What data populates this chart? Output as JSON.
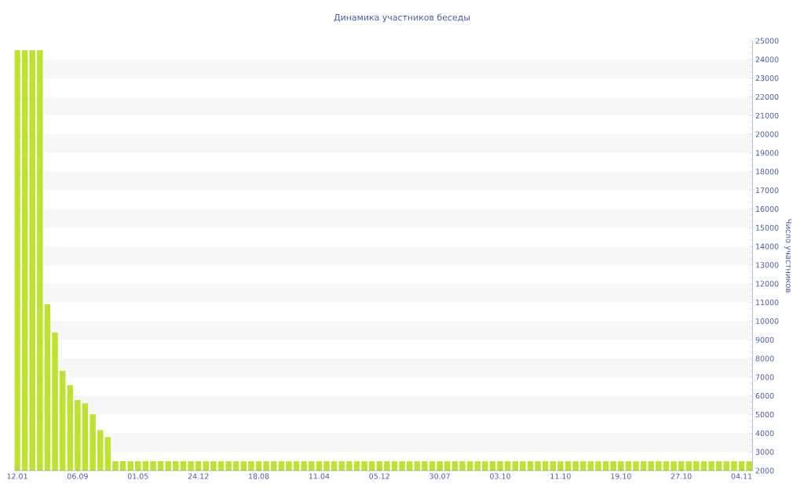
{
  "chart_data": {
    "type": "bar",
    "title": "Динамика участников беседы",
    "ylabel": "Число участников",
    "categories": [
      "12.01",
      null,
      null,
      null,
      null,
      null,
      null,
      null,
      "06.09",
      null,
      null,
      null,
      null,
      null,
      null,
      null,
      "01.05",
      null,
      null,
      null,
      null,
      null,
      null,
      null,
      "24.12",
      null,
      null,
      null,
      null,
      null,
      null,
      null,
      "18.08",
      null,
      null,
      null,
      null,
      null,
      null,
      null,
      "11.04",
      null,
      null,
      null,
      null,
      null,
      null,
      null,
      "05.12",
      null,
      null,
      null,
      null,
      null,
      null,
      null,
      "30.07",
      null,
      null,
      null,
      null,
      null,
      null,
      null,
      "03.10",
      null,
      null,
      null,
      null,
      null,
      null,
      null,
      "11.10",
      null,
      null,
      null,
      null,
      null,
      null,
      null,
      "19.10",
      null,
      null,
      null,
      null,
      null,
      null,
      null,
      "27.10",
      null,
      null,
      null,
      null,
      null,
      null,
      null,
      "04.11",
      null
    ],
    "values": [
      24500,
      24500,
      24500,
      24500,
      10900,
      9400,
      7340,
      6570,
      5780,
      5600,
      5010,
      4170,
      3790,
      2500,
      2500,
      2500,
      2500,
      2500,
      2500,
      2500,
      2500,
      2500,
      2500,
      2500,
      2500,
      2500,
      2500,
      2500,
      2500,
      2500,
      2500,
      2500,
      2500,
      2500,
      2500,
      2500,
      2500,
      2500,
      2500,
      2500,
      2500,
      2500,
      2500,
      2500,
      2500,
      2500,
      2500,
      2500,
      2500,
      2500,
      2500,
      2500,
      2500,
      2500,
      2500,
      2500,
      2500,
      2500,
      2500,
      2500,
      2500,
      2500,
      2500,
      2500,
      2500,
      2500,
      2500,
      2500,
      2500,
      2500,
      2500,
      2500,
      2500,
      2500,
      2500,
      2500,
      2500,
      2500,
      2500,
      2500,
      2500,
      2500,
      2500,
      2500,
      2500,
      2500,
      2500,
      2500,
      2500,
      2500,
      2500,
      2500,
      2500,
      2500,
      2500,
      2500,
      2500,
      2500
    ],
    "color": "#bde232",
    "ylim": [
      2000,
      25000
    ],
    "yticks": [
      2000,
      3000,
      4000,
      5000,
      6000,
      7000,
      8000,
      9000,
      10000,
      11000,
      12000,
      13000,
      14000,
      15000,
      16000,
      17000,
      18000,
      19000,
      20000,
      21000,
      22000,
      23000,
      24000,
      25000
    ],
    "bands": [
      {
        "axis": "y",
        "from": 3000,
        "to": 4000,
        "color": "#f7f7f7"
      },
      {
        "axis": "y",
        "from": 5000,
        "to": 6000,
        "color": "#f7f7f7"
      },
      {
        "axis": "y",
        "from": 7000,
        "to": 8000,
        "color": "#f7f7f7"
      },
      {
        "axis": "y",
        "from": 9000,
        "to": 10000,
        "color": "#f7f7f7"
      },
      {
        "axis": "y",
        "from": 11000,
        "to": 12000,
        "color": "#f7f7f7"
      },
      {
        "axis": "y",
        "from": 13000,
        "to": 14000,
        "color": "#f7f7f7"
      },
      {
        "axis": "y",
        "from": 15000,
        "to": 16000,
        "color": "#f7f7f7"
      },
      {
        "axis": "y",
        "from": 17000,
        "to": 18000,
        "color": "#f7f7f7"
      },
      {
        "axis": "y",
        "from": 19000,
        "to": 20000,
        "color": "#f7f7f7"
      },
      {
        "axis": "y",
        "from": 21000,
        "to": 22000,
        "color": "#f7f7f7"
      },
      {
        "axis": "y",
        "from": 23000,
        "to": 24000,
        "color": "#f7f7f7"
      }
    ]
  }
}
